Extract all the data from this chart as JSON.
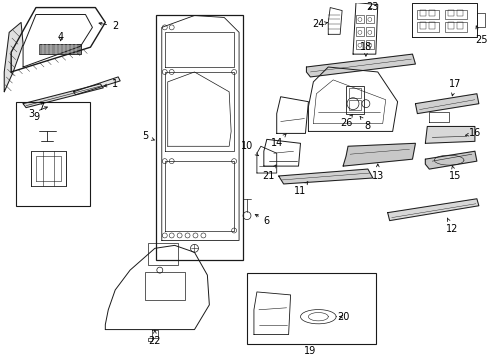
{
  "bg_color": "#ffffff",
  "line_color": "#1a1a1a",
  "lw": 0.7,
  "label_fs": 7,
  "figsize": [
    4.89,
    3.6
  ],
  "dpi": 100
}
